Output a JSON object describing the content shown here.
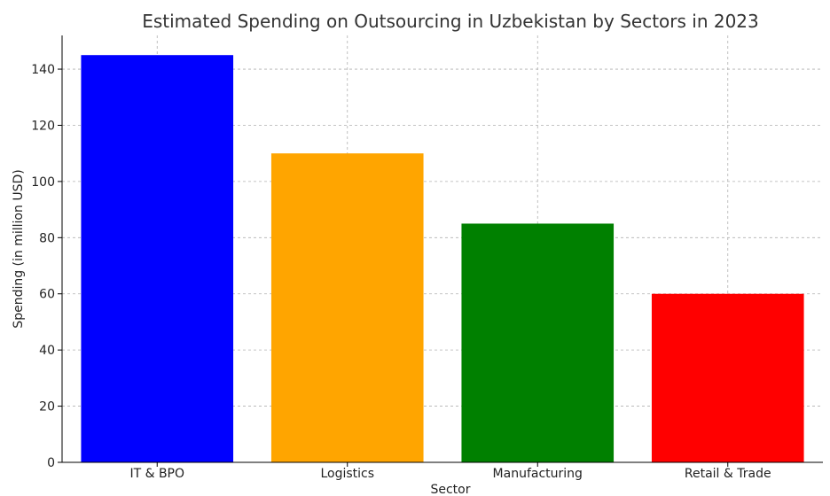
{
  "chart_data": {
    "type": "bar",
    "title": "Estimated Spending on Outsourcing in Uzbekistan by Sectors in 2023",
    "xlabel": "Sector",
    "ylabel": "Spending (in million USD)",
    "categories": [
      "IT & BPO",
      "Logistics",
      "Manufacturing",
      "Retail & Trade"
    ],
    "values": [
      145,
      110,
      85,
      60
    ],
    "colors": [
      "#0000ff",
      "#ffa500",
      "#008000",
      "#ff0000"
    ],
    "ylim": [
      0,
      152
    ],
    "yticks": [
      0,
      20,
      40,
      60,
      80,
      100,
      120,
      140
    ],
    "grid": true
  }
}
